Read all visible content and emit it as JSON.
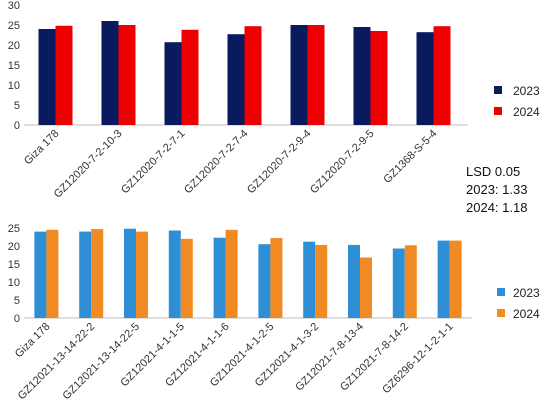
{
  "chart_data": [
    {
      "type": "bar",
      "categories": [
        "Giza 178",
        "GZ12020-7-2-10-3",
        "GZ12020-7-2-7-1",
        "GZ12020-7-2-7-4",
        "GZ12020-7-2-9-4",
        "GZ12020-7-2-9-5",
        "GZ1368-S-5-4"
      ],
      "series": [
        {
          "name": "2023",
          "values": [
            24.0,
            26.0,
            20.7,
            22.7,
            25.0,
            24.5,
            23.2
          ],
          "color": "#0a1a5e"
        },
        {
          "name": "2024",
          "values": [
            24.8,
            25.0,
            23.8,
            24.7,
            25.0,
            23.5,
            24.7
          ],
          "color": "#ee0000"
        }
      ],
      "ylim": [
        0,
        30
      ],
      "yticks": [
        0,
        5,
        10,
        15,
        20,
        25,
        30
      ],
      "grid": false,
      "legend": "right"
    },
    {
      "type": "bar",
      "categories": [
        "Giza 178",
        "GZ12021-13-14-22-2",
        "GZ12021-13-14-22-5",
        "GZ12021-4-1-1-5",
        "GZ12021-4-1-1-6",
        "GZ12021-4-1-2-5",
        "GZ12021-4-1-3-2",
        "GZ12021-7-8-13-4",
        "GZ12021-7-8-14-2",
        "GZ6296-12-1-2-1-1"
      ],
      "series": [
        {
          "name": "2023",
          "values": [
            24.0,
            24.0,
            24.8,
            24.3,
            22.3,
            20.5,
            21.2,
            20.3,
            19.3,
            21.5
          ],
          "color": "#2f8fd6"
        },
        {
          "name": "2024",
          "values": [
            24.5,
            24.7,
            24.0,
            22.0,
            24.5,
            22.2,
            20.3,
            16.8,
            20.2,
            21.5
          ],
          "color": "#f18a22"
        }
      ],
      "ylim": [
        0,
        25
      ],
      "yticks": [
        0,
        5,
        10,
        15,
        20,
        25
      ],
      "grid": false,
      "legend": "right"
    }
  ],
  "annotation": {
    "line1": "LSD 0.05",
    "line2": "2023: 1.33",
    "line3": "2024: 1.18"
  }
}
